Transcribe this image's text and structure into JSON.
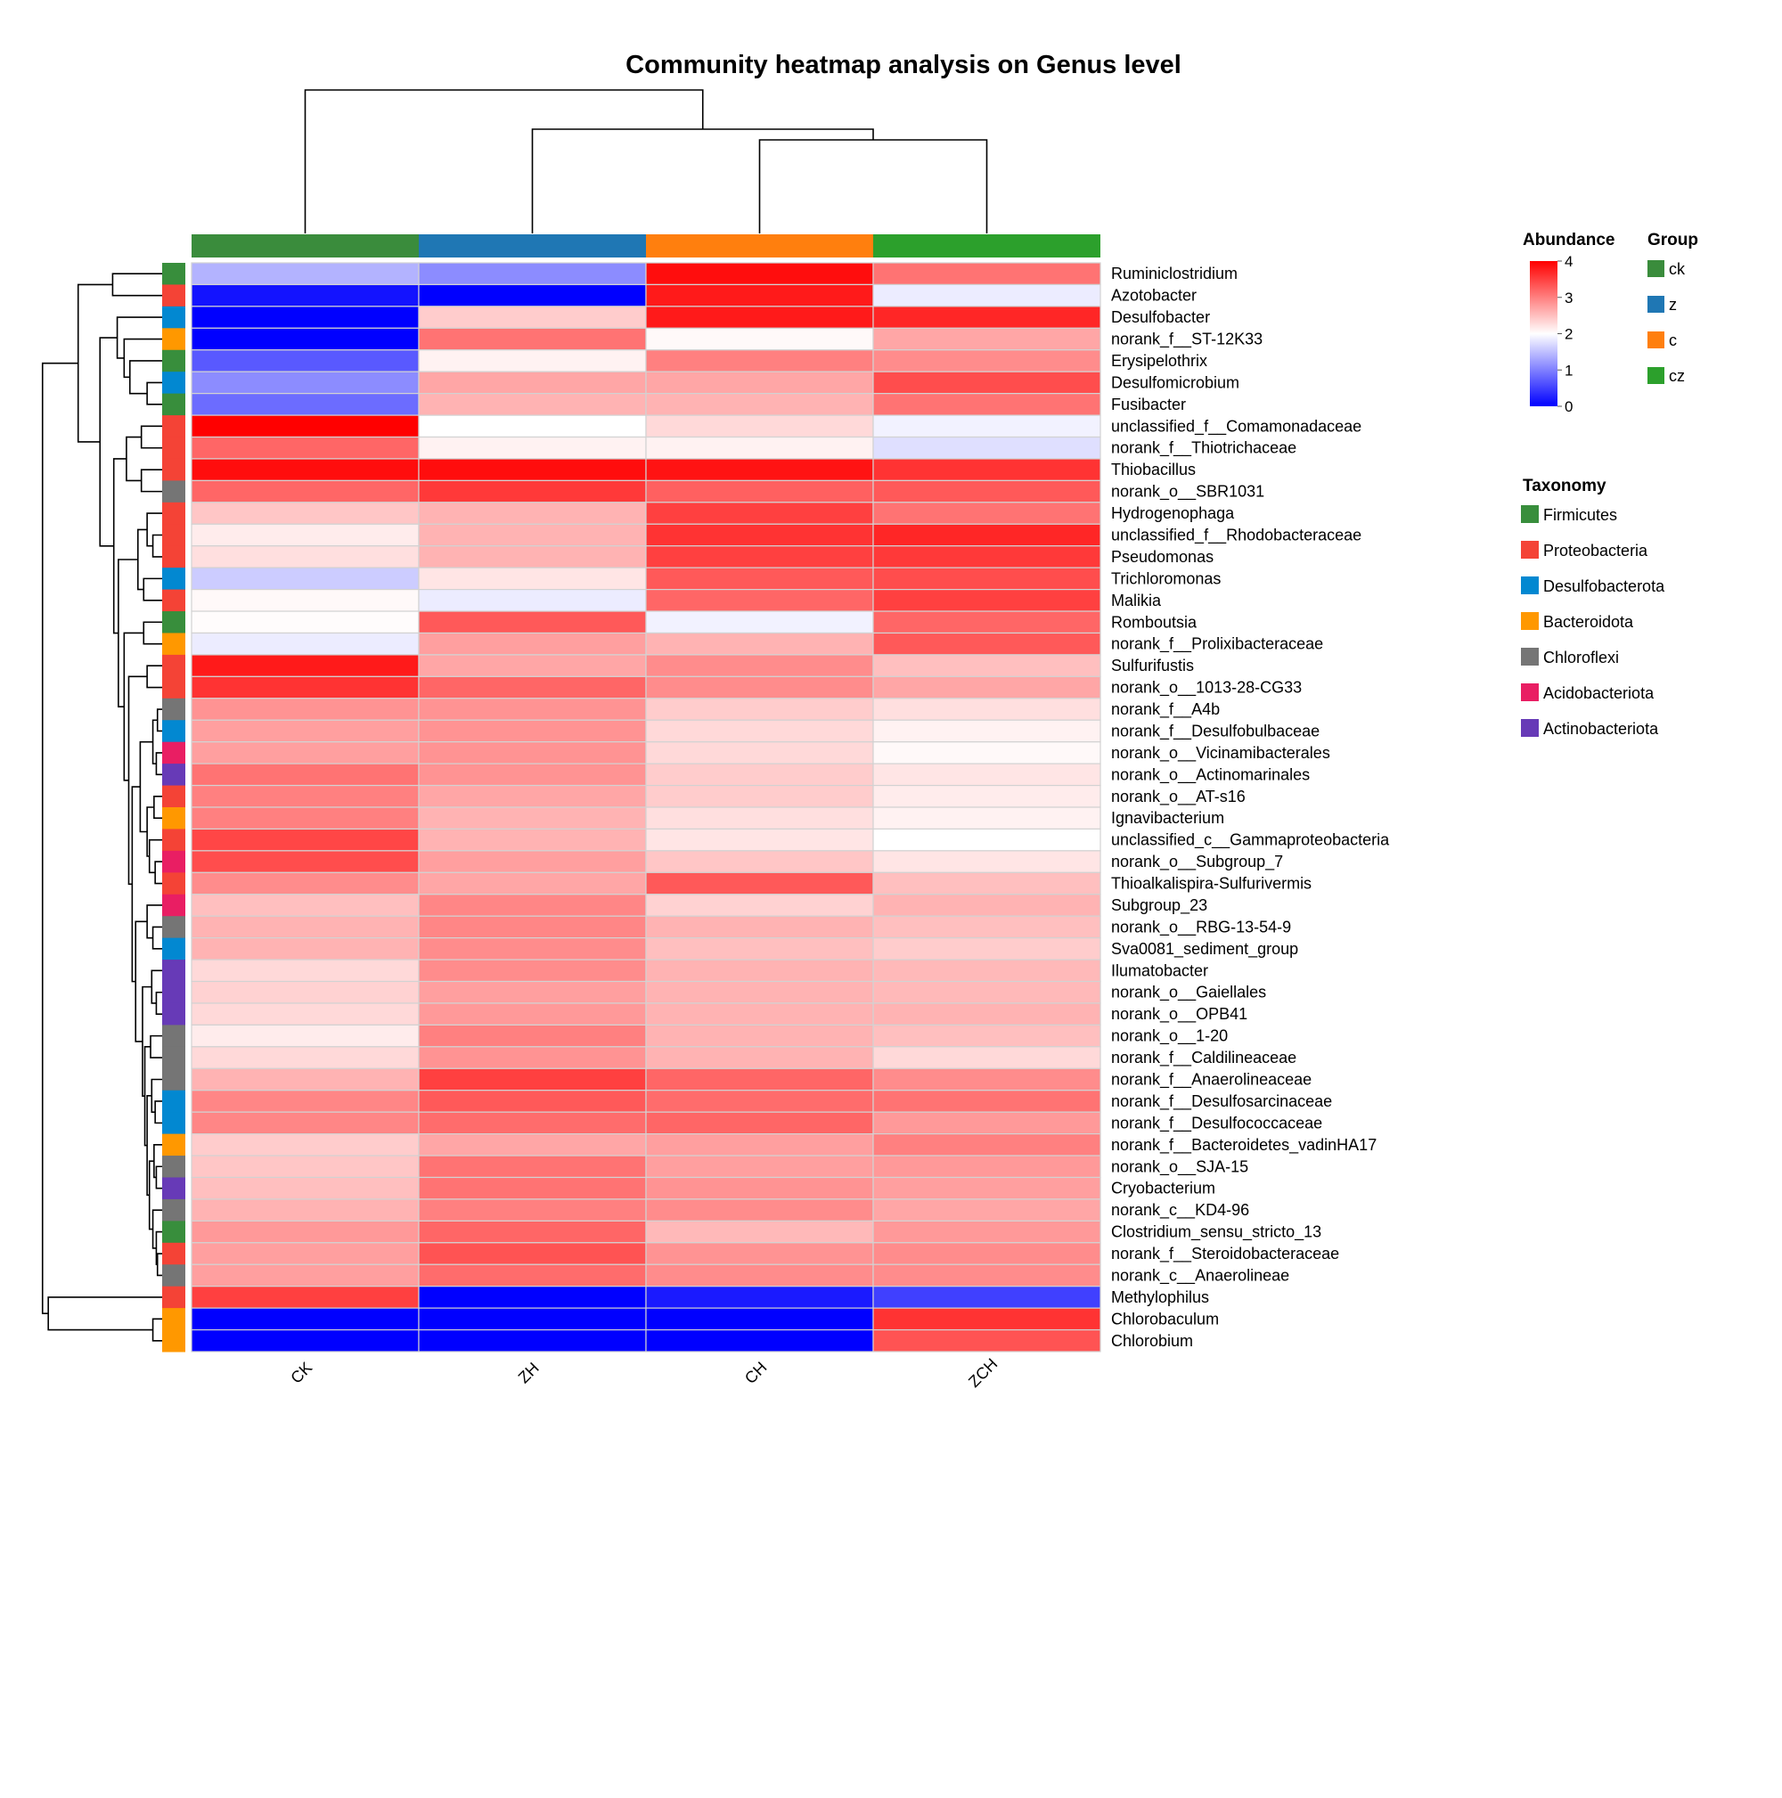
{
  "chart_data": {
    "type": "heatmap",
    "title": "Community heatmap analysis on Genus level",
    "columns": [
      "CK",
      "ZH",
      "CH",
      "ZCH"
    ],
    "column_groups": [
      "ck",
      "z",
      "c",
      "cz"
    ],
    "column_dendrogram": "(CK,(ZH,(CH,ZCH)))",
    "color_scale": {
      "title": "Abundance",
      "min": 0,
      "max": 4,
      "ticks": [
        0,
        1,
        2,
        3,
        4
      ],
      "low": "#0000ff",
      "mid": "#ffffff",
      "high": "#ff0000"
    },
    "group_legend": {
      "title": "Group",
      "items": [
        {
          "label": "ck",
          "color": "#3a8c3c"
        },
        {
          "label": "z",
          "color": "#1f77b4"
        },
        {
          "label": "c",
          "color": "#ff7f0e"
        },
        {
          "label": "cz",
          "color": "#2ca02c"
        }
      ]
    },
    "taxonomy_legend": {
      "title": "Taxonomy",
      "items": [
        {
          "label": "Firmicutes",
          "color": "#388e3c"
        },
        {
          "label": "Proteobacteria",
          "color": "#f44336"
        },
        {
          "label": "Desulfobacterota",
          "color": "#0288d1"
        },
        {
          "label": "Bacteroidota",
          "color": "#ff9800"
        },
        {
          "label": "Chloroflexi",
          "color": "#757575"
        },
        {
          "label": "Acidobacteriota",
          "color": "#e91e63"
        },
        {
          "label": "Actinobacteriota",
          "color": "#673ab7"
        }
      ]
    },
    "rows": [
      {
        "name": "Ruminiclostridium",
        "taxon": "Firmicutes",
        "values": [
          1.4,
          1.1,
          3.9,
          3.1
        ]
      },
      {
        "name": "Azotobacter",
        "taxon": "Proteobacteria",
        "values": [
          0.15,
          0.0,
          3.8,
          1.85
        ]
      },
      {
        "name": "Desulfobacter",
        "taxon": "Desulfobacterota",
        "values": [
          0.0,
          2.4,
          3.8,
          3.7
        ]
      },
      {
        "name": "norank_f__ST-12K33",
        "taxon": "Bacteroidota",
        "values": [
          0.0,
          3.1,
          2.05,
          2.7
        ]
      },
      {
        "name": "Erysipelothrix",
        "taxon": "Firmicutes",
        "values": [
          0.7,
          2.1,
          3.0,
          2.9
        ]
      },
      {
        "name": "Desulfomicrobium",
        "taxon": "Desulfobacterota",
        "values": [
          1.1,
          2.7,
          2.7,
          3.4
        ]
      },
      {
        "name": "Fusibacter",
        "taxon": "Firmicutes",
        "values": [
          0.85,
          2.6,
          2.6,
          3.1
        ]
      },
      {
        "name": "unclassified_f__Comamonadaceae",
        "taxon": "Proteobacteria",
        "values": [
          4.0,
          2.0,
          2.3,
          1.9
        ]
      },
      {
        "name": "norank_f__Thiotrichaceae",
        "taxon": "Proteobacteria",
        "values": [
          3.2,
          2.1,
          2.1,
          1.75
        ]
      },
      {
        "name": "Thiobacillus",
        "taxon": "Proteobacteria",
        "values": [
          3.9,
          3.9,
          3.85,
          3.6
        ]
      },
      {
        "name": "norank_o__SBR1031",
        "taxon": "Chloroflexi",
        "values": [
          3.2,
          3.55,
          3.25,
          3.3
        ]
      },
      {
        "name": "Hydrogenophaga",
        "taxon": "Proteobacteria",
        "values": [
          2.45,
          2.6,
          3.5,
          3.1
        ]
      },
      {
        "name": "unclassified_f__Rhodobacteraceae",
        "taxon": "Proteobacteria",
        "values": [
          2.15,
          2.6,
          3.6,
          3.7
        ]
      },
      {
        "name": "Pseudomonas",
        "taxon": "Proteobacteria",
        "values": [
          2.25,
          2.6,
          3.5,
          3.55
        ]
      },
      {
        "name": "Trichloromonas",
        "taxon": "Desulfobacterota",
        "values": [
          1.6,
          2.2,
          3.3,
          3.4
        ]
      },
      {
        "name": "Malikia",
        "taxon": "Proteobacteria",
        "values": [
          2.05,
          1.85,
          3.2,
          3.5
        ]
      },
      {
        "name": "Romboutsia",
        "taxon": "Firmicutes",
        "values": [
          2.02,
          3.3,
          1.9,
          3.2
        ]
      },
      {
        "name": "norank_f__Prolixibacteraceae",
        "taxon": "Bacteroidota",
        "values": [
          1.85,
          2.75,
          2.6,
          3.3
        ]
      },
      {
        "name": "Sulfurifustis",
        "taxon": "Proteobacteria",
        "values": [
          3.8,
          2.7,
          2.9,
          2.5
        ]
      },
      {
        "name": "norank_o__1013-28-CG33",
        "taxon": "Proteobacteria",
        "values": [
          3.6,
          3.2,
          2.9,
          2.7
        ]
      },
      {
        "name": "norank_f__A4b",
        "taxon": "Chloroflexi",
        "values": [
          2.85,
          2.85,
          2.4,
          2.25
        ]
      },
      {
        "name": "norank_f__Desulfobulbaceae",
        "taxon": "Desulfobacterota",
        "values": [
          2.75,
          2.85,
          2.3,
          2.1
        ]
      },
      {
        "name": "norank_o__Vicinamibacterales",
        "taxon": "Acidobacteriota",
        "values": [
          2.75,
          2.85,
          2.3,
          2.05
        ]
      },
      {
        "name": "norank_o__Actinomarinales",
        "taxon": "Actinobacteriota",
        "values": [
          3.1,
          2.85,
          2.4,
          2.2
        ]
      },
      {
        "name": "norank_o__AT-s16",
        "taxon": "Proteobacteria",
        "values": [
          3.0,
          2.7,
          2.4,
          2.15
        ]
      },
      {
        "name": "Ignavibacterium",
        "taxon": "Bacteroidota",
        "values": [
          3.0,
          2.6,
          2.25,
          2.1
        ]
      },
      {
        "name": "unclassified_c__Gammaproteobacteria",
        "taxon": "Proteobacteria",
        "values": [
          3.45,
          2.6,
          2.2,
          2.0
        ]
      },
      {
        "name": "norank_o__Subgroup_7",
        "taxon": "Acidobacteriota",
        "values": [
          3.4,
          2.75,
          2.45,
          2.2
        ]
      },
      {
        "name": "Thioalkalispira-Sulfurivermis",
        "taxon": "Proteobacteria",
        "values": [
          2.9,
          2.7,
          3.3,
          2.5
        ]
      },
      {
        "name": "Subgroup_23",
        "taxon": "Acidobacteriota",
        "values": [
          2.5,
          2.95,
          2.35,
          2.6
        ]
      },
      {
        "name": "norank_o__RBG-13-54-9",
        "taxon": "Chloroflexi",
        "values": [
          2.6,
          2.95,
          2.6,
          2.5
        ]
      },
      {
        "name": "Sva0081_sediment_group",
        "taxon": "Desulfobacterota",
        "values": [
          2.6,
          2.9,
          2.5,
          2.4
        ]
      },
      {
        "name": "Ilumatobacter",
        "taxon": "Actinobacteriota",
        "values": [
          2.3,
          2.9,
          2.6,
          2.55
        ]
      },
      {
        "name": "norank_o__Gaiellales",
        "taxon": "Actinobacteriota",
        "values": [
          2.35,
          2.75,
          2.6,
          2.55
        ]
      },
      {
        "name": "norank_o__OPB41",
        "taxon": "Actinobacteriota",
        "values": [
          2.3,
          2.8,
          2.6,
          2.6
        ]
      },
      {
        "name": "norank_o__1-20",
        "taxon": "Chloroflexi",
        "values": [
          2.15,
          3.0,
          2.6,
          2.5
        ]
      },
      {
        "name": "norank_f__Caldilineaceae",
        "taxon": "Chloroflexi",
        "values": [
          2.3,
          2.85,
          2.6,
          2.3
        ]
      },
      {
        "name": "norank_f__Anaerolineaceae",
        "taxon": "Chloroflexi",
        "values": [
          2.6,
          3.5,
          3.2,
          2.9
        ]
      },
      {
        "name": "norank_f__Desulfosarcinaceae",
        "taxon": "Desulfobacterota",
        "values": [
          2.95,
          3.3,
          3.15,
          3.1
        ]
      },
      {
        "name": "norank_f__Desulfococcaceae",
        "taxon": "Desulfobacterota",
        "values": [
          2.95,
          3.15,
          3.2,
          2.8
        ]
      },
      {
        "name": "norank_f__Bacteroidetes_vadinHA17",
        "taxon": "Bacteroidota",
        "values": [
          2.4,
          2.7,
          2.75,
          3.0
        ]
      },
      {
        "name": "norank_o__SJA-15",
        "taxon": "Chloroflexi",
        "values": [
          2.45,
          3.1,
          2.75,
          2.8
        ]
      },
      {
        "name": "Cryobacterium",
        "taxon": "Actinobacteriota",
        "values": [
          2.5,
          3.1,
          2.85,
          2.75
        ]
      },
      {
        "name": "norank_c__KD4-96",
        "taxon": "Chloroflexi",
        "values": [
          2.6,
          3.0,
          2.9,
          2.7
        ]
      },
      {
        "name": "Clostridium_sensu_stricto_13",
        "taxon": "Firmicutes",
        "values": [
          2.8,
          3.2,
          2.55,
          2.8
        ]
      },
      {
        "name": "norank_f__Steroidobacteraceae",
        "taxon": "Proteobacteria",
        "values": [
          2.75,
          3.35,
          2.85,
          2.9
        ]
      },
      {
        "name": "norank_c__Anaerolineae",
        "taxon": "Chloroflexi",
        "values": [
          2.75,
          3.15,
          2.9,
          2.9
        ]
      },
      {
        "name": "Methylophilus",
        "taxon": "Proteobacteria",
        "values": [
          3.5,
          0.0,
          0.2,
          0.5
        ]
      },
      {
        "name": "Chlorobaculum",
        "taxon": "Bacteroidota",
        "values": [
          0.0,
          0.0,
          0.0,
          3.6
        ]
      },
      {
        "name": "Chlorobium",
        "taxon": "Bacteroidota",
        "values": [
          0.0,
          0.0,
          0.0,
          3.35
        ]
      }
    ]
  }
}
